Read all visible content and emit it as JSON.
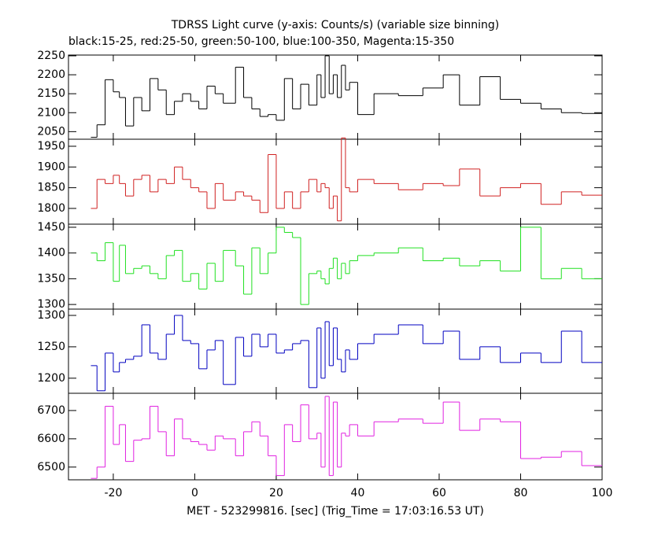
{
  "chart_data": {
    "type": "step",
    "title": "TDRSS Light curve (y-axis: Counts/s) (variable size binning)",
    "subtitle": "black:15-25, red:25-50, green:50-100, blue:100-350, Magenta:15-350",
    "xlabel": "MET - 523299816. [sec] (Trig_Time = 17:03:16.53 UT)",
    "xlim": [
      -31,
      100
    ],
    "xticks": [
      -20,
      0,
      20,
      40,
      60,
      80,
      100
    ],
    "bins": [
      -25.5,
      -24,
      -22,
      -20,
      -18.5,
      -17,
      -15,
      -13,
      -11,
      -9,
      -7,
      -5,
      -3,
      -1,
      1,
      3,
      5,
      7,
      10,
      12,
      14,
      16,
      18,
      20,
      22,
      24,
      26,
      28,
      30,
      31,
      32,
      33,
      34,
      35,
      36,
      37,
      38,
      40,
      44,
      50,
      56,
      61,
      65,
      70,
      75,
      80,
      85,
      90,
      95,
      100
    ],
    "panels": [
      {
        "color": "#000000",
        "ylim": [
          2030,
          2252
        ],
        "yticks": [
          2050,
          2100,
          2150,
          2200,
          2250
        ],
        "values": [
          2035,
          2068,
          2187,
          2155,
          2140,
          2065,
          2140,
          2105,
          2190,
          2160,
          2095,
          2130,
          2150,
          2130,
          2110,
          2170,
          2150,
          2125,
          2220,
          2140,
          2110,
          2090,
          2095,
          2080,
          2190,
          2110,
          2175,
          2120,
          2200,
          2140,
          2250,
          2150,
          2200,
          2140,
          2225,
          2160,
          2180,
          2095,
          2150,
          2145,
          2165,
          2200,
          2120,
          2195,
          2135,
          2125,
          2110,
          2100,
          2098
        ]
      },
      {
        "color": "#d02020",
        "ylim": [
          1762,
          1967
        ],
        "yticks": [
          1800,
          1850,
          1900,
          1950
        ],
        "values": [
          1800,
          1870,
          1860,
          1880,
          1860,
          1830,
          1870,
          1880,
          1840,
          1870,
          1860,
          1900,
          1870,
          1850,
          1840,
          1800,
          1860,
          1820,
          1840,
          1830,
          1820,
          1790,
          1930,
          1800,
          1840,
          1800,
          1840,
          1870,
          1840,
          1860,
          1850,
          1800,
          1830,
          1770,
          1970,
          1850,
          1840,
          1870,
          1860,
          1845,
          1860,
          1855,
          1895,
          1830,
          1850,
          1860,
          1810,
          1840,
          1832
        ]
      },
      {
        "color": "#20e020",
        "ylim": [
          1291,
          1456
        ],
        "yticks": [
          1300,
          1350,
          1400,
          1450
        ],
        "values": [
          1400,
          1385,
          1420,
          1345,
          1415,
          1360,
          1370,
          1375,
          1360,
          1350,
          1395,
          1405,
          1345,
          1360,
          1330,
          1380,
          1345,
          1405,
          1375,
          1320,
          1410,
          1360,
          1400,
          1450,
          1440,
          1430,
          1300,
          1360,
          1365,
          1350,
          1340,
          1370,
          1390,
          1350,
          1380,
          1360,
          1385,
          1395,
          1400,
          1410,
          1385,
          1390,
          1375,
          1385,
          1365,
          1450,
          1350,
          1370,
          1350
        ]
      },
      {
        "color": "#0000c0",
        "ylim": [
          1176,
          1310
        ],
        "yticks": [
          1200,
          1250,
          1300
        ],
        "values": [
          1220,
          1180,
          1240,
          1210,
          1225,
          1230,
          1235,
          1285,
          1240,
          1230,
          1270,
          1300,
          1260,
          1255,
          1215,
          1245,
          1260,
          1190,
          1265,
          1235,
          1270,
          1250,
          1270,
          1240,
          1245,
          1255,
          1260,
          1185,
          1280,
          1200,
          1290,
          1220,
          1280,
          1230,
          1210,
          1245,
          1230,
          1255,
          1270,
          1285,
          1255,
          1275,
          1230,
          1250,
          1225,
          1240,
          1225,
          1275,
          1225
        ]
      },
      {
        "color": "#e020e0",
        "ylim": [
          6455,
          6761
        ],
        "yticks": [
          6500,
          6600,
          6700
        ],
        "values": [
          6460,
          6500,
          6715,
          6580,
          6650,
          6520,
          6595,
          6600,
          6715,
          6625,
          6540,
          6670,
          6600,
          6590,
          6580,
          6560,
          6610,
          6600,
          6540,
          6625,
          6660,
          6610,
          6540,
          6470,
          6650,
          6590,
          6720,
          6600,
          6620,
          6500,
          6750,
          6470,
          6730,
          6500,
          6620,
          6610,
          6650,
          6610,
          6660,
          6670,
          6655,
          6730,
          6630,
          6670,
          6660,
          6530,
          6535,
          6555,
          6505
        ]
      }
    ]
  }
}
